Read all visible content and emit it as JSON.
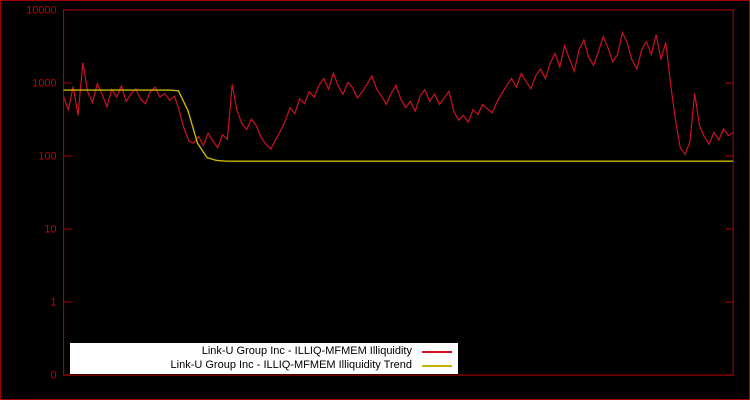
{
  "chart_data": {
    "type": "line",
    "title": "",
    "xlabel": "",
    "ylabel": "",
    "y_scale": "log",
    "y_range": [
      0.1,
      10000
    ],
    "grid": false,
    "legend_position": "bottom-left-inside",
    "y_ticks": [
      {
        "label": "10000",
        "value": 10000
      },
      {
        "label": "1000",
        "value": 1000
      },
      {
        "label": "100",
        "value": 100
      },
      {
        "label": "10",
        "value": 10
      },
      {
        "label": "1",
        "value": 1
      },
      {
        "label": "0",
        "value": 0.1
      }
    ],
    "colors": {
      "background": "#000000",
      "frame": "#b40000",
      "tick_label": "#c80000",
      "legend_background": "#ffffff",
      "legend_text": "#000000"
    },
    "series": [
      {
        "name": "Link-U Group Inc - ILLIQ-MFMEM Illiquidity",
        "color": "#cc1122",
        "values": [
          650,
          430,
          900,
          360,
          1900,
          760,
          540,
          980,
          700,
          470,
          820,
          640,
          910,
          560,
          710,
          830,
          600,
          520,
          760,
          880,
          640,
          720,
          580,
          660,
          420,
          240,
          160,
          150,
          185,
          140,
          205,
          160,
          130,
          195,
          170,
          950,
          420,
          280,
          230,
          320,
          260,
          180,
          145,
          125,
          165,
          220,
          300,
          460,
          380,
          610,
          520,
          760,
          640,
          920,
          1150,
          820,
          1350,
          920,
          700,
          1020,
          860,
          620,
          760,
          960,
          1250,
          820,
          660,
          510,
          720,
          930,
          600,
          460,
          560,
          410,
          660,
          810,
          560,
          710,
          510,
          620,
          770,
          410,
          310,
          360,
          290,
          430,
          370,
          510,
          440,
          390,
          560,
          720,
          930,
          1150,
          870,
          1350,
          1050,
          830,
          1250,
          1550,
          1150,
          1850,
          2550,
          1650,
          3250,
          2150,
          1450,
          2850,
          3900,
          2250,
          1750,
          2650,
          4300,
          3050,
          1950,
          2450,
          4900,
          3550,
          2050,
          1550,
          2850,
          3700,
          2450,
          4600,
          2100,
          3600,
          950,
          320,
          130,
          105,
          155,
          720,
          260,
          185,
          145,
          210,
          165,
          235,
          190,
          210
        ]
      },
      {
        "name": "Link-U Group Inc - ILLIQ-MFMEM Illiquidity Trend",
        "color": "#c8b400",
        "values": [
          800,
          800,
          800,
          800,
          800,
          800,
          800,
          800,
          800,
          800,
          800,
          800,
          780,
          420,
          150,
          95,
          87,
          85,
          85,
          85,
          85,
          85,
          85,
          85,
          85,
          85,
          85,
          85,
          85,
          85,
          85,
          85,
          85,
          85,
          85,
          85,
          85,
          85,
          85,
          85,
          85,
          85,
          85,
          85,
          85,
          85,
          85,
          85,
          85,
          85,
          85,
          85,
          85,
          85,
          85,
          85,
          85,
          85,
          85,
          85,
          85,
          85,
          85,
          85,
          85,
          85,
          85,
          85,
          85,
          85,
          85
        ]
      }
    ]
  }
}
